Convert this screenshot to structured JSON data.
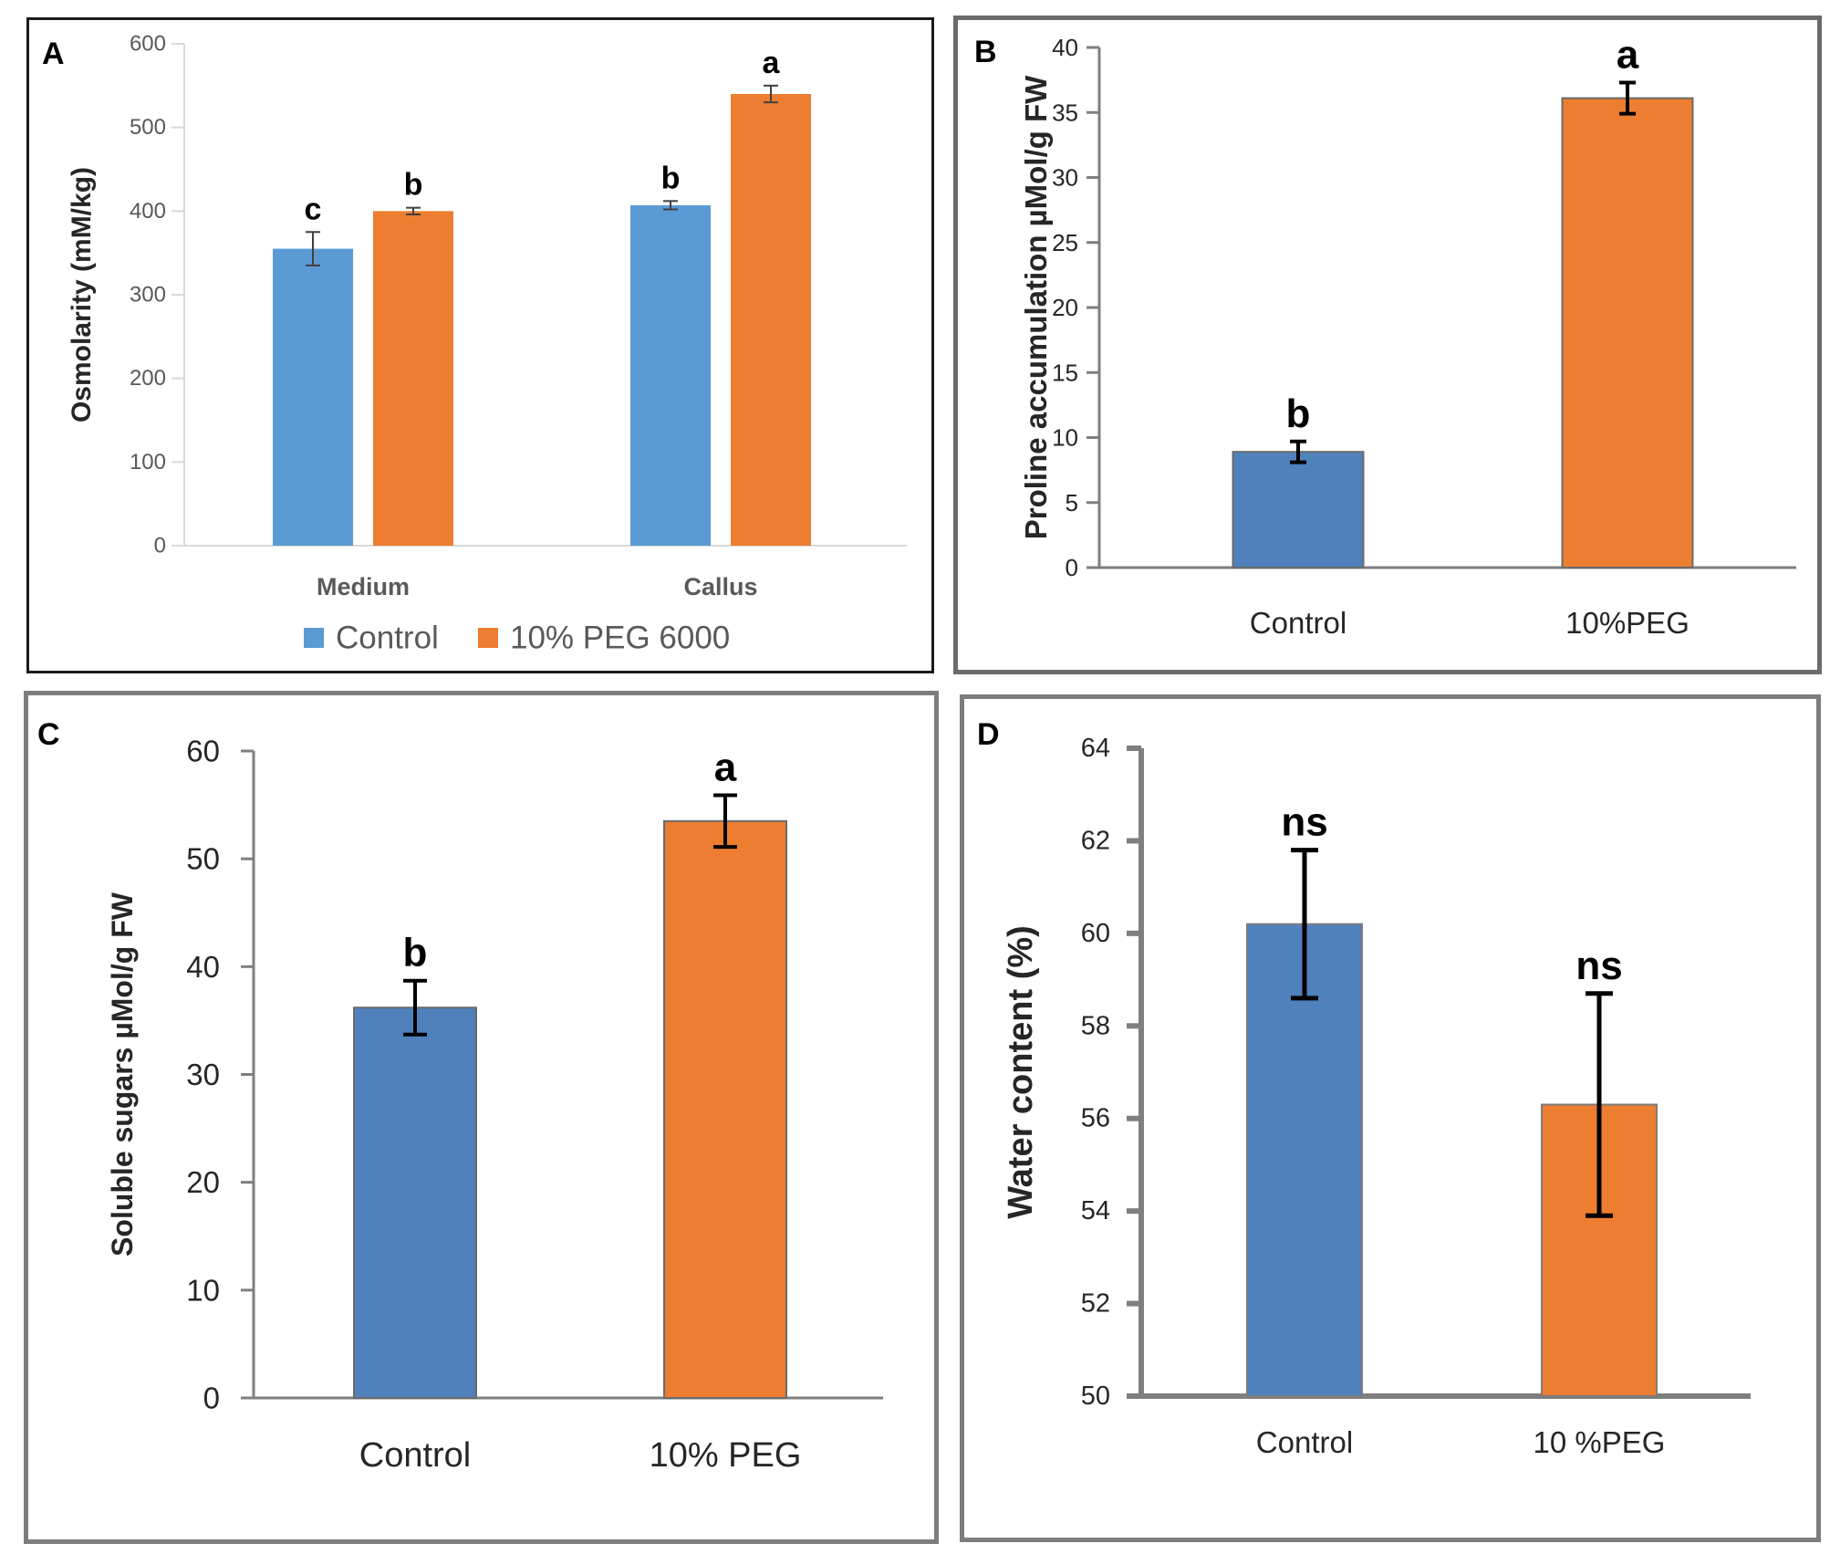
{
  "colors": {
    "a_control": "#5b9bd5",
    "a_peg": "#ed7d31",
    "control": "#4f81bd",
    "peg": "#ed7d31"
  },
  "chart_data": [
    {
      "panel": "A",
      "type": "bar",
      "ylabel": "Osmolarity (mM/kg)",
      "categories": [
        "Medium",
        "Callus"
      ],
      "ylim": [
        0,
        600
      ],
      "yticks": [
        "0",
        "100",
        "200",
        "300",
        "400",
        "500",
        "600"
      ],
      "series": [
        {
          "name": "Control",
          "values": [
            355,
            407
          ],
          "errors": [
            20,
            5
          ],
          "letters": [
            "c",
            "b"
          ]
        },
        {
          "name": "10% PEG 6000",
          "values": [
            400,
            540
          ],
          "errors": [
            4,
            10
          ],
          "letters": [
            "b",
            "a"
          ]
        }
      ],
      "legend": "bottom"
    },
    {
      "panel": "B",
      "type": "bar",
      "ylabel": "Proline accumulation µMol/g FW",
      "categories": [
        "Control",
        "10%PEG"
      ],
      "ylim": [
        0,
        40
      ],
      "yticks": [
        "0",
        "5",
        "10",
        "15",
        "20",
        "25",
        "30",
        "35",
        "40"
      ],
      "values": [
        8.9,
        36.1
      ],
      "errors": [
        0.8,
        1.2
      ],
      "letters": [
        "b",
        "a"
      ]
    },
    {
      "panel": "C",
      "type": "bar",
      "ylabel": "Soluble sugars µMol/g FW",
      "categories": [
        "Control",
        "10% PEG"
      ],
      "ylim": [
        0,
        60
      ],
      "yticks": [
        "0",
        "10",
        "20",
        "30",
        "40",
        "50",
        "60"
      ],
      "values": [
        36.2,
        53.5
      ],
      "errors": [
        2.5,
        2.4
      ],
      "letters": [
        "b",
        "a"
      ]
    },
    {
      "panel": "D",
      "type": "bar",
      "ylabel": "Water content (%)",
      "categories": [
        "Control",
        "10 %PEG"
      ],
      "ylim": [
        50,
        64
      ],
      "yticks": [
        "50",
        "52",
        "54",
        "56",
        "58",
        "60",
        "62",
        "64"
      ],
      "values": [
        60.2,
        56.3
      ],
      "errors": [
        1.6,
        2.4
      ],
      "letters": [
        "ns",
        "ns"
      ]
    }
  ]
}
